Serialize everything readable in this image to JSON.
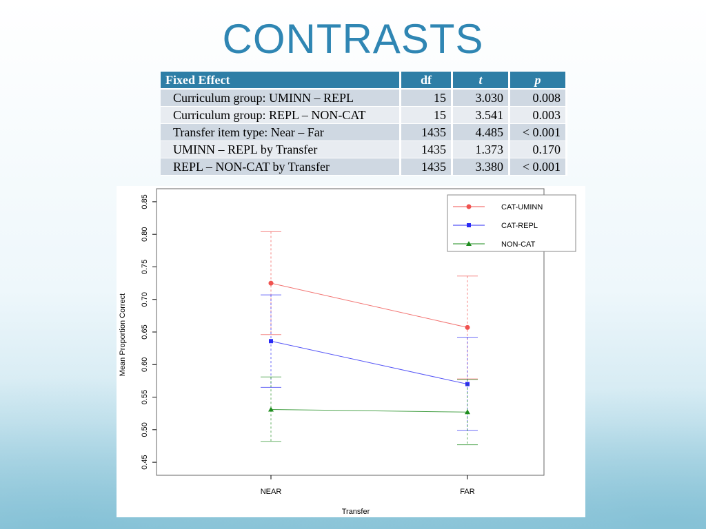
{
  "slide": {
    "title": "CONTRASTS"
  },
  "table": {
    "headers": [
      "Fixed Effect",
      "df",
      "t",
      "p"
    ],
    "rows": [
      {
        "effect": "Curriculum group: UMINN – REPL",
        "df": "15",
        "t": "3.030",
        "p": "0.008"
      },
      {
        "effect": "Curriculum group: REPL – NON-CAT",
        "df": "15",
        "t": "3.541",
        "p": "0.003"
      },
      {
        "effect": "Transfer item type: Near – Far",
        "df": "1435",
        "t": "4.485",
        "p": "< 0.001"
      },
      {
        "effect": "UMINN – REPL by Transfer",
        "df": "1435",
        "t": "1.373",
        "p": "0.170"
      },
      {
        "effect": "REPL – NON-CAT by Transfer",
        "df": "1435",
        "t": "3.380",
        "p": "< 0.001"
      }
    ]
  },
  "chart_data": {
    "type": "line",
    "title": "",
    "xlabel": "Transfer",
    "ylabel": "Mean Proportion Correct",
    "categories": [
      "NEAR",
      "FAR"
    ],
    "ylim": [
      0.43,
      0.87
    ],
    "yticks": [
      "0.45",
      "0.50",
      "0.55",
      "0.60",
      "0.65",
      "0.70",
      "0.75",
      "0.80",
      "0.85"
    ],
    "legend_position": "top-right",
    "series": [
      {
        "name": "CAT-UMINN",
        "color": "#f0524f",
        "marker": "circle",
        "values": [
          0.725,
          0.657
        ],
        "lower": [
          0.646,
          0.578
        ],
        "upper": [
          0.804,
          0.736
        ]
      },
      {
        "name": "CAT-REPL",
        "color": "#2a2af5",
        "marker": "square",
        "values": [
          0.636,
          0.57
        ],
        "lower": [
          0.565,
          0.499
        ],
        "upper": [
          0.707,
          0.642
        ]
      },
      {
        "name": "NON-CAT",
        "color": "#1e8c1e",
        "marker": "triangle",
        "values": [
          0.531,
          0.527
        ],
        "lower": [
          0.482,
          0.477
        ],
        "upper": [
          0.581,
          0.577
        ]
      }
    ]
  }
}
